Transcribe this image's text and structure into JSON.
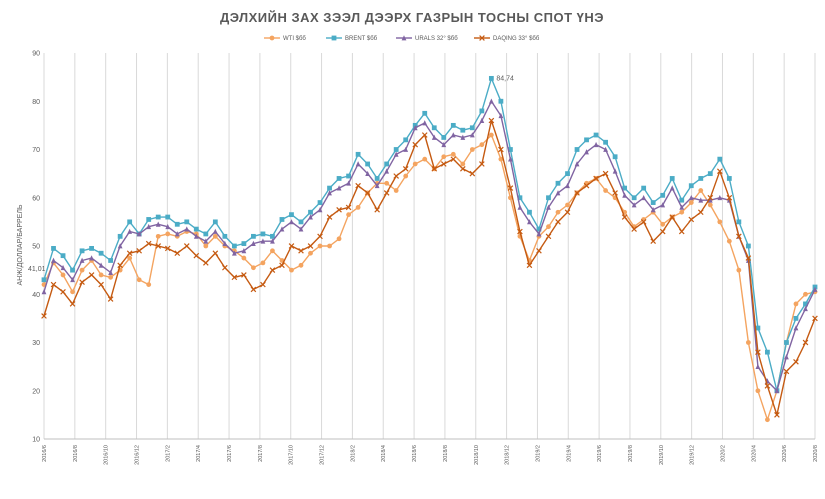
{
  "chart_data": {
    "type": "line",
    "title": "ДЭЛХИЙН ЗАХ ЗЭЭЛ ДЭЭРХ ГАЗРЫН ТОСНЫ СПОТ ҮНЭ",
    "ylabel": "АНЖ/ДОЛЛАР/БАРРЕЛЬ",
    "ylim": [
      10,
      90
    ],
    "yticks": [
      10,
      20,
      30,
      40,
      50,
      60,
      70,
      80,
      90
    ],
    "grid": "vertical",
    "legend_position": "top",
    "x_tick_labels": [
      "2016/6",
      "2016/8",
      "2016/10",
      "2016/12",
      "2017/2",
      "2017/4",
      "2017/6",
      "2017/8",
      "2017/10",
      "2017/12",
      "2018/2",
      "2018/4",
      "2018/6",
      "2018/8",
      "2018/10",
      "2018/12",
      "2019/2",
      "2019/4",
      "2019/6",
      "2019/8",
      "2019/10",
      "2019/12",
      "2020/2",
      "2020/4",
      "2020/6",
      "2020/8"
    ],
    "series": [
      {
        "name": "WTI $бб",
        "color": "#f4a460",
        "marker": "circle",
        "values": [
          42.0,
          46.5,
          44.0,
          40.5,
          45.0,
          47.0,
          44.0,
          43.5,
          45.0,
          47.5,
          43.0,
          42.0,
          52.0,
          52.5,
          52.0,
          53.0,
          52.5,
          50.0,
          52.0,
          50.0,
          49.0,
          47.5,
          45.5,
          46.5,
          49.0,
          47.0,
          45.0,
          46.0,
          48.5,
          50.0,
          50.0,
          51.5,
          56.5,
          58.0,
          61.0,
          63.0,
          63.0,
          61.5,
          64.5,
          67.0,
          68.0,
          66.0,
          68.5,
          69.0,
          67.0,
          70.0,
          71.0,
          73.0,
          68.0,
          60.0,
          52.0,
          47.0,
          52.0,
          54.0,
          57.0,
          58.5,
          61.0,
          63.0,
          64.0,
          61.5,
          60.0,
          57.0,
          54.0,
          55.5,
          57.0,
          54.5,
          56.0,
          57.0,
          59.0,
          61.5,
          58.5,
          55.0,
          51.0,
          45.0,
          30.0,
          20.0,
          14.0,
          20.0,
          30.0,
          38.0,
          40.0,
          40.5
        ]
      },
      {
        "name": "BRENT $бб",
        "color": "#4bacc6",
        "marker": "square",
        "values": [
          43.0,
          49.5,
          48.0,
          45.0,
          49.0,
          49.5,
          48.5,
          47.0,
          52.0,
          55.0,
          52.5,
          55.5,
          56.0,
          56.0,
          54.5,
          55.0,
          53.5,
          52.5,
          55.0,
          52.0,
          50.0,
          50.5,
          52.0,
          52.5,
          52.0,
          55.5,
          56.5,
          55.0,
          57.0,
          59.0,
          62.0,
          64.0,
          64.5,
          69.0,
          67.0,
          64.0,
          67.0,
          70.0,
          72.0,
          75.0,
          77.5,
          74.5,
          72.5,
          75.0,
          74.0,
          74.5,
          78.0,
          84.74,
          80.0,
          70.0,
          60.0,
          57.0,
          53.5,
          60.0,
          63.0,
          65.0,
          70.0,
          72.0,
          73.0,
          71.5,
          68.5,
          62.0,
          60.0,
          62.0,
          59.0,
          60.5,
          64.0,
          59.5,
          62.5,
          64.0,
          65.0,
          68.0,
          64.0,
          55.0,
          50.0,
          33.0,
          28.0,
          20.0,
          30.0,
          35.0,
          38.0,
          41.5
        ]
      },
      {
        "name": "URALS 32° $бб",
        "color": "#8064a2",
        "marker": "triangle",
        "values": [
          40.5,
          47.0,
          45.5,
          43.0,
          47.0,
          47.5,
          46.0,
          44.5,
          50.0,
          53.0,
          52.5,
          54.0,
          54.5,
          54.0,
          52.5,
          53.5,
          52.0,
          51.0,
          53.0,
          50.5,
          48.5,
          49.0,
          50.5,
          51.0,
          51.0,
          53.5,
          55.0,
          53.5,
          56.0,
          57.5,
          61.0,
          62.0,
          63.0,
          67.0,
          65.0,
          62.5,
          65.5,
          69.0,
          70.0,
          74.5,
          75.5,
          72.5,
          71.0,
          73.0,
          72.5,
          73.0,
          76.0,
          80.0,
          77.0,
          68.0,
          58.0,
          55.0,
          52.5,
          58.0,
          61.0,
          62.5,
          67.0,
          69.5,
          71.0,
          70.0,
          65.5,
          60.5,
          58.5,
          60.0,
          57.5,
          58.5,
          62.0,
          58.0,
          60.0,
          59.5,
          59.5,
          60.0,
          59.5,
          52.0,
          47.0,
          25.0,
          22.0,
          20.0,
          27.0,
          33.0,
          37.0,
          41.0
        ]
      },
      {
        "name": "DAQING 33° $бб",
        "color": "#c55a11",
        "marker": "x",
        "values": [
          35.5,
          42.0,
          40.5,
          38.0,
          42.5,
          44.0,
          42.0,
          39.0,
          46.0,
          48.5,
          49.0,
          50.5,
          50.0,
          49.5,
          48.5,
          50.0,
          48.0,
          46.5,
          48.5,
          45.5,
          43.5,
          44.0,
          41.0,
          42.0,
          45.0,
          46.0,
          50.0,
          49.0,
          50.0,
          52.0,
          56.0,
          57.5,
          58.0,
          62.5,
          61.0,
          57.5,
          61.0,
          64.5,
          66.0,
          71.0,
          73.0,
          66.0,
          67.0,
          68.0,
          66.0,
          65.0,
          67.0,
          76.0,
          70.0,
          62.0,
          53.0,
          46.0,
          49.0,
          52.0,
          55.0,
          57.0,
          61.0,
          62.5,
          64.0,
          65.0,
          61.0,
          56.0,
          53.5,
          55.0,
          51.0,
          53.0,
          56.0,
          53.0,
          55.5,
          57.0,
          60.0,
          65.5,
          60.0,
          52.0,
          47.5,
          28.0,
          21.0,
          15.0,
          24.0,
          26.0,
          30.0,
          35.0
        ]
      }
    ],
    "annotations": [
      {
        "text": "84,74"
      },
      {
        "text": "41,01"
      }
    ]
  }
}
